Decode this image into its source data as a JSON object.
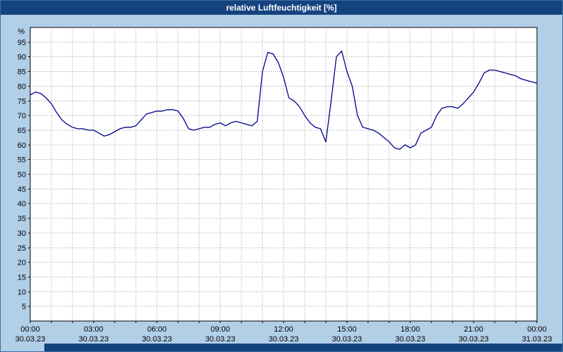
{
  "colors": {
    "titlebar_bg": "#15437f",
    "window_bg": "#b2cfe8",
    "frame_border": "#3a6ea5",
    "plot_bg": "#ffffff",
    "plot_border": "#000000",
    "grid": "#999999",
    "line": "#00008b"
  },
  "chart_data": {
    "type": "line",
    "title": "relative Luftfeuchtigkeit [%]",
    "ylabel": "%",
    "xlabel": "",
    "ylim": [
      0,
      100
    ],
    "ytick_step": 5,
    "yticks": [
      5,
      10,
      15,
      20,
      25,
      30,
      35,
      40,
      45,
      50,
      55,
      60,
      65,
      70,
      75,
      80,
      85,
      90,
      95
    ],
    "grid": "dotted; vertical every hour, horizontal every 5 %",
    "legend": "none",
    "xticks": [
      {
        "hour": 0,
        "time": "00:00",
        "date": "30.03.23"
      },
      {
        "hour": 3,
        "time": "03:00",
        "date": "30.03.23"
      },
      {
        "hour": 6,
        "time": "06:00",
        "date": "30.03.23"
      },
      {
        "hour": 9,
        "time": "09:00",
        "date": "30.03.23"
      },
      {
        "hour": 12,
        "time": "12:00",
        "date": "30.03.23"
      },
      {
        "hour": 15,
        "time": "15:00",
        "date": "30.03.23"
      },
      {
        "hour": 18,
        "time": "18:00",
        "date": "30.03.23"
      },
      {
        "hour": 21,
        "time": "21:00",
        "date": "30.03.23"
      },
      {
        "hour": 24,
        "time": "00:00",
        "date": "31.03.23"
      }
    ],
    "series": [
      {
        "name": "relative Luftfeuchtigkeit",
        "x_hours": [
          0,
          0.25,
          0.5,
          0.75,
          1,
          1.25,
          1.5,
          1.75,
          2,
          2.25,
          2.5,
          2.75,
          3,
          3.25,
          3.5,
          3.75,
          4,
          4.25,
          4.5,
          4.75,
          5,
          5.25,
          5.5,
          5.75,
          6,
          6.25,
          6.5,
          6.75,
          7,
          7.25,
          7.5,
          7.75,
          8,
          8.25,
          8.5,
          8.75,
          9,
          9.25,
          9.5,
          9.75,
          10,
          10.25,
          10.5,
          10.75,
          11,
          11.25,
          11.5,
          11.75,
          12,
          12.25,
          12.5,
          12.75,
          13,
          13.25,
          13.5,
          13.75,
          14,
          14.25,
          14.5,
          14.75,
          15,
          15.25,
          15.5,
          15.75,
          16,
          16.25,
          16.5,
          16.75,
          17,
          17.25,
          17.5,
          17.75,
          18,
          18.25,
          18.5,
          18.75,
          19,
          19.25,
          19.5,
          19.75,
          20,
          20.25,
          20.5,
          20.75,
          21,
          21.25,
          21.5,
          21.75,
          22,
          22.25,
          22.5,
          22.75,
          23,
          23.25,
          23.5,
          23.75,
          24
        ],
        "values": [
          77,
          78,
          77.5,
          76,
          74,
          71,
          68.5,
          67,
          66,
          65.5,
          65.5,
          65,
          65,
          64,
          63,
          63.5,
          64.5,
          65.5,
          66,
          66,
          66.5,
          68.5,
          70.5,
          71,
          71.5,
          71.5,
          72,
          72,
          71.5,
          69,
          65.5,
          65,
          65.5,
          66,
          66,
          67,
          67.5,
          66.5,
          67.5,
          68,
          67.5,
          67,
          66.5,
          68,
          85,
          91.5,
          91,
          88,
          83,
          76,
          75,
          73,
          70,
          67.5,
          66,
          65.5,
          61,
          75,
          90,
          92,
          85,
          80,
          70,
          66,
          65.5,
          65,
          64,
          62.5,
          61,
          59,
          58.5,
          60,
          59,
          60,
          64,
          65,
          66,
          70,
          72.5,
          73,
          73,
          72.5,
          74,
          76,
          78,
          81,
          84.5,
          85.5,
          85.5,
          85,
          84.5,
          84,
          83.5,
          82.5,
          82,
          81.5,
          81
        ]
      }
    ]
  }
}
